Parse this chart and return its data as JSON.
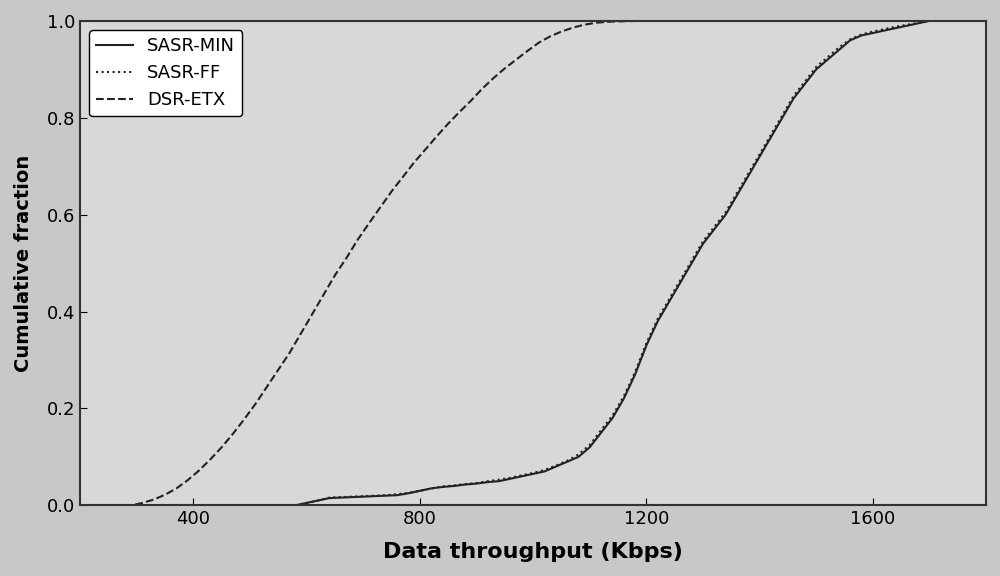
{
  "title": "",
  "xlabel": "Data throughput (Kbps)",
  "ylabel": "Cumulative fraction",
  "xlim": [
    200,
    1800
  ],
  "ylim": [
    0.0,
    1.0
  ],
  "xticks": [
    400,
    800,
    1200,
    1600
  ],
  "yticks": [
    0.0,
    0.2,
    0.4,
    0.6,
    0.8,
    1.0
  ],
  "legend_labels": [
    "SASR-MIN",
    "SASR-FF",
    "DSR-ETX"
  ],
  "legend_loc": "upper left",
  "background_color": "#d3d3d3",
  "plot_background": "#e8e8e8",
  "sasr_min": {
    "x": [
      200,
      580,
      600,
      620,
      640,
      660,
      680,
      700,
      720,
      740,
      760,
      780,
      800,
      820,
      840,
      860,
      880,
      900,
      920,
      940,
      960,
      980,
      1000,
      1020,
      1040,
      1060,
      1080,
      1100,
      1120,
      1140,
      1160,
      1180,
      1200,
      1220,
      1240,
      1260,
      1280,
      1300,
      1320,
      1340,
      1360,
      1380,
      1400,
      1420,
      1440,
      1460,
      1480,
      1500,
      1520,
      1540,
      1560,
      1580,
      1600,
      1620,
      1640,
      1660,
      1680,
      1700,
      1800
    ],
    "y": [
      0.0,
      0.0,
      0.005,
      0.01,
      0.015,
      0.016,
      0.017,
      0.018,
      0.019,
      0.02,
      0.021,
      0.025,
      0.03,
      0.035,
      0.038,
      0.04,
      0.043,
      0.045,
      0.048,
      0.05,
      0.055,
      0.06,
      0.065,
      0.07,
      0.08,
      0.09,
      0.1,
      0.12,
      0.15,
      0.18,
      0.22,
      0.27,
      0.33,
      0.38,
      0.42,
      0.46,
      0.5,
      0.54,
      0.57,
      0.6,
      0.64,
      0.68,
      0.72,
      0.76,
      0.8,
      0.84,
      0.87,
      0.9,
      0.92,
      0.94,
      0.96,
      0.97,
      0.975,
      0.98,
      0.985,
      0.99,
      0.995,
      1.0,
      1.0
    ]
  },
  "sasr_ff": {
    "x": [
      200,
      580,
      600,
      620,
      640,
      660,
      680,
      700,
      720,
      740,
      760,
      780,
      800,
      820,
      840,
      860,
      880,
      900,
      920,
      940,
      960,
      980,
      1000,
      1020,
      1040,
      1060,
      1080,
      1100,
      1120,
      1140,
      1160,
      1180,
      1200,
      1220,
      1240,
      1260,
      1280,
      1300,
      1320,
      1340,
      1360,
      1380,
      1400,
      1420,
      1440,
      1460,
      1480,
      1500,
      1520,
      1540,
      1560,
      1580,
      1600,
      1620,
      1640,
      1660,
      1680,
      1700,
      1800
    ],
    "y": [
      0.0,
      0.0,
      0.005,
      0.01,
      0.016,
      0.017,
      0.018,
      0.019,
      0.02,
      0.021,
      0.023,
      0.026,
      0.03,
      0.035,
      0.039,
      0.041,
      0.044,
      0.046,
      0.05,
      0.053,
      0.057,
      0.062,
      0.067,
      0.073,
      0.082,
      0.092,
      0.105,
      0.125,
      0.155,
      0.185,
      0.225,
      0.275,
      0.335,
      0.385,
      0.425,
      0.465,
      0.505,
      0.545,
      0.575,
      0.605,
      0.645,
      0.685,
      0.725,
      0.765,
      0.805,
      0.845,
      0.875,
      0.905,
      0.925,
      0.945,
      0.962,
      0.972,
      0.978,
      0.983,
      0.988,
      0.992,
      0.996,
      1.0,
      1.0
    ]
  },
  "dsr_etx": {
    "x": [
      200,
      290,
      310,
      330,
      350,
      370,
      390,
      410,
      430,
      450,
      470,
      490,
      510,
      530,
      550,
      570,
      590,
      610,
      630,
      650,
      670,
      690,
      710,
      730,
      750,
      770,
      790,
      810,
      830,
      850,
      870,
      890,
      910,
      930,
      950,
      970,
      990,
      1010,
      1030,
      1050,
      1070,
      1090,
      1110,
      1130,
      1150,
      1170,
      1190,
      1210,
      1230,
      1250,
      1800
    ],
    "y": [
      0.0,
      0.0,
      0.005,
      0.012,
      0.022,
      0.035,
      0.052,
      0.072,
      0.095,
      0.12,
      0.148,
      0.178,
      0.21,
      0.245,
      0.28,
      0.315,
      0.355,
      0.395,
      0.435,
      0.475,
      0.51,
      0.548,
      0.582,
      0.615,
      0.648,
      0.678,
      0.708,
      0.735,
      0.762,
      0.788,
      0.812,
      0.835,
      0.86,
      0.882,
      0.902,
      0.92,
      0.938,
      0.955,
      0.968,
      0.978,
      0.986,
      0.992,
      0.996,
      0.998,
      0.999,
      0.9995,
      1.0,
      1.0,
      1.0,
      1.0,
      1.0
    ]
  },
  "line_color": "#222222",
  "linewidth": 1.5
}
